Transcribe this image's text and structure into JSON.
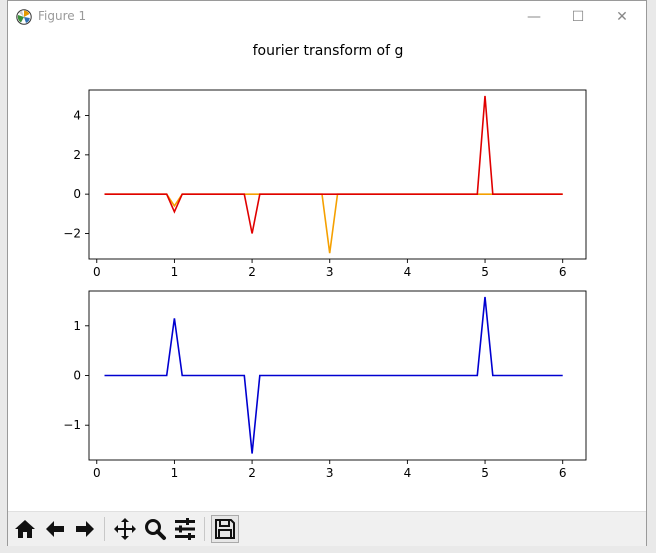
{
  "window": {
    "title": "Figure 1",
    "minimize_glyph": "—",
    "maximize_glyph": "☐",
    "close_glyph": "✕"
  },
  "toolbar": {
    "icons": [
      "home-icon",
      "back-arrow-icon",
      "forward-arrow-icon",
      "pan-icon",
      "zoom-icon",
      "subplots-icon",
      "save-icon"
    ]
  },
  "chart_data": [
    {
      "type": "line",
      "title": "fourier transform of g",
      "xlim": [
        -0.1,
        6.3
      ],
      "ylim": [
        -3.3,
        5.3
      ],
      "x_ticks": [
        0,
        1,
        2,
        3,
        4,
        5,
        6
      ],
      "y_ticks": [
        -2,
        0,
        2,
        4
      ],
      "x_tick_labels": [
        "0",
        "1",
        "2",
        "3",
        "4",
        "5",
        "6"
      ],
      "y_tick_labels": [
        "−2",
        "0",
        "2",
        "4"
      ],
      "grid": false,
      "series": [
        {
          "color": "#f5a000",
          "x": [
            0.1,
            0.9,
            1.0,
            1.1,
            1.9,
            2.0,
            2.1,
            2.9,
            3.0,
            3.1,
            4.9,
            5.0,
            5.1,
            6.0
          ],
          "values": [
            0,
            0,
            -0.6,
            0,
            0,
            0,
            0,
            0,
            -3.0,
            0,
            0,
            0,
            0,
            0
          ]
        },
        {
          "color": "#e00000",
          "x": [
            0.1,
            0.9,
            1.0,
            1.1,
            1.9,
            2.0,
            2.1,
            2.9,
            3.0,
            3.1,
            4.9,
            5.0,
            5.1,
            6.0
          ],
          "values": [
            0,
            0,
            -0.9,
            0,
            0,
            -2.0,
            0,
            0,
            0,
            0,
            0,
            5.0,
            0,
            0
          ]
        }
      ]
    },
    {
      "type": "line",
      "xlim": [
        -0.1,
        6.3
      ],
      "ylim": [
        -1.7,
        1.7
      ],
      "x_ticks": [
        0,
        1,
        2,
        3,
        4,
        5,
        6
      ],
      "y_ticks": [
        -1,
        0,
        1
      ],
      "x_tick_labels": [
        "0",
        "1",
        "2",
        "3",
        "4",
        "5",
        "6"
      ],
      "y_tick_labels": [
        "−1",
        "0",
        "1"
      ],
      "grid": false,
      "series": [
        {
          "color": "#0000d0",
          "x": [
            0.1,
            0.9,
            1.0,
            1.1,
            1.9,
            2.0,
            2.1,
            2.9,
            3.0,
            3.1,
            4.9,
            5.0,
            5.1,
            6.0
          ],
          "values": [
            0,
            0,
            1.15,
            0,
            0,
            -1.57,
            0,
            0,
            0,
            0,
            0,
            1.58,
            0,
            0
          ]
        }
      ]
    }
  ]
}
